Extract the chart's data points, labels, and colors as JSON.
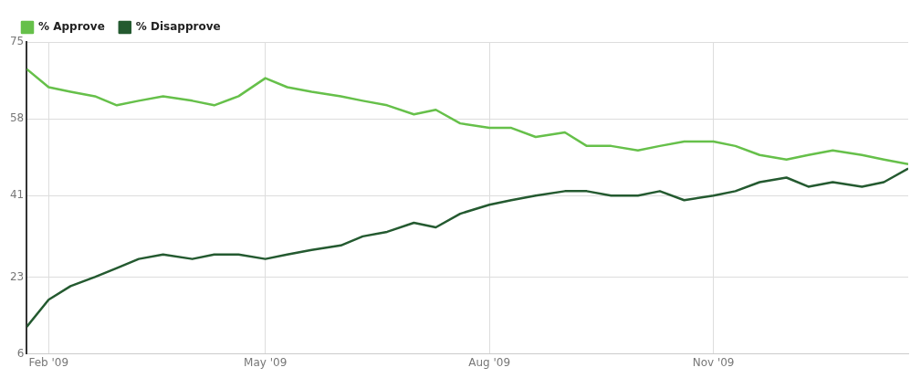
{
  "chart_data": {
    "type": "line",
    "x": [
      "2009-01-23",
      "2009-02-01",
      "2009-02-10",
      "2009-02-20",
      "2009-03-01",
      "2009-03-10",
      "2009-03-20",
      "2009-04-01",
      "2009-04-10",
      "2009-04-20",
      "2009-05-01",
      "2009-05-10",
      "2009-05-20",
      "2009-06-01",
      "2009-06-10",
      "2009-06-20",
      "2009-07-01",
      "2009-07-10",
      "2009-07-20",
      "2009-08-01",
      "2009-08-10",
      "2009-08-20",
      "2009-09-01",
      "2009-09-10",
      "2009-09-20",
      "2009-10-01",
      "2009-10-10",
      "2009-10-20",
      "2009-11-01",
      "2009-11-10",
      "2009-11-20",
      "2009-12-01",
      "2009-12-10",
      "2009-12-20",
      "2010-01-01",
      "2010-01-10",
      "2010-01-20"
    ],
    "series": [
      {
        "name": "% Approve",
        "color": "#66c04a",
        "values": [
          69,
          65,
          64,
          63,
          61,
          62,
          63,
          62,
          61,
          63,
          67,
          65,
          64,
          63,
          62,
          61,
          59,
          60,
          57,
          56,
          56,
          54,
          55,
          52,
          52,
          51,
          52,
          53,
          53,
          52,
          50,
          49,
          50,
          51,
          50,
          49,
          48
        ]
      },
      {
        "name": "% Disapprove",
        "color": "#245a30",
        "values": [
          12,
          18,
          21,
          23,
          25,
          27,
          28,
          27,
          28,
          28,
          27,
          28,
          29,
          30,
          32,
          33,
          35,
          34,
          37,
          39,
          40,
          41,
          42,
          42,
          41,
          41,
          42,
          40,
          41,
          42,
          44,
          45,
          43,
          44,
          43,
          44,
          47
        ]
      }
    ],
    "xlim": [
      "2009-01-23",
      "2010-01-20"
    ],
    "xticks": [
      {
        "value": "2009-02-01",
        "label": "Feb '09"
      },
      {
        "value": "2009-05-01",
        "label": "May '09"
      },
      {
        "value": "2009-08-01",
        "label": "Aug '09"
      },
      {
        "value": "2009-11-01",
        "label": "Nov '09"
      }
    ],
    "ylim": [
      6,
      75
    ],
    "yticks": [
      6,
      23,
      41,
      58,
      75
    ],
    "grid": true,
    "legend": "top left",
    "marker": "none",
    "line_style": "solid"
  }
}
